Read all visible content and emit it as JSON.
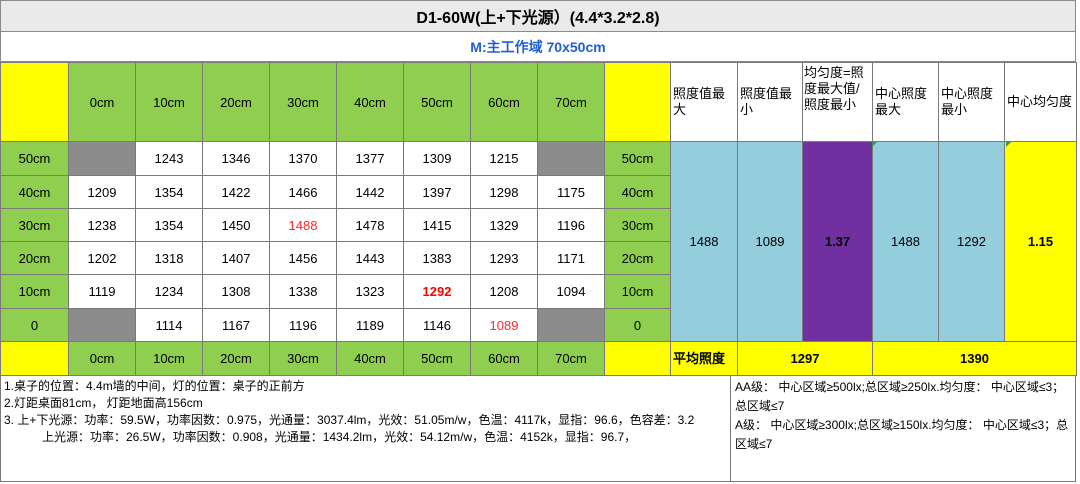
{
  "title": "D1-60W(上+下光源）(4.4*3.2*2.8)",
  "subtitle": "M:主工作域 70x50cm",
  "col_headers": [
    "0cm",
    "10cm",
    "20cm",
    "30cm",
    "40cm",
    "50cm",
    "60cm",
    "70cm"
  ],
  "row_headers": [
    "50cm",
    "40cm",
    "30cm",
    "20cm",
    "10cm",
    "0"
  ],
  "rows": [
    [
      "",
      "1243",
      "1346",
      "1370",
      "1377",
      "1309",
      "1215",
      ""
    ],
    [
      "1209",
      "1354",
      "1422",
      "1466",
      "1442",
      "1397",
      "1298",
      "1175"
    ],
    [
      "1238",
      "1354",
      "1450",
      "1488",
      "1478",
      "1415",
      "1329",
      "1196"
    ],
    [
      "1202",
      "1318",
      "1407",
      "1456",
      "1443",
      "1383",
      "1293",
      "1171"
    ],
    [
      "1119",
      "1234",
      "1308",
      "1338",
      "1323",
      "1292",
      "1208",
      "1094"
    ],
    [
      "",
      "1114",
      "1167",
      "1196",
      "1189",
      "1146",
      "1089",
      ""
    ]
  ],
  "stats_headers": {
    "max": "照度值最大",
    "min": "照度值最小",
    "uniformity": "均匀度=照度最大值/照度最小",
    "center_max": "中心照度最大",
    "center_min": "中心照度最小",
    "center_uniformity": "中心均匀度"
  },
  "stats_values": {
    "max": "1488",
    "min": "1089",
    "uniformity": "1.37",
    "center_max": "1488",
    "center_min": "1292",
    "center_uniformity": "1.15"
  },
  "average": {
    "label": "平均照度",
    "value_all": "1297",
    "value_center": "1390"
  },
  "notes_left": [
    "1.桌子的位置：4.4m墙的中间，灯的位置：桌子的正前方",
    "2.灯距桌面81cm，  灯距地面高156cm",
    "3. 上+下光源：功率：59.5W，功率因数：0.975，光通量：3037.4lm，光效：51.05m/w，色温：4117k，显指：96.6，色容差：3.2",
    "上光源：功率：26.5W，功率因数：0.908，光通量：1434.2lm，光效：54.12m/w，色温：4152k，显指：96.7，"
  ],
  "notes_right": [
    "AA级：  中心区域≥500lx;总区域≥250lx.均匀度：  中心区域≤3；总区域≤7",
    "A级：  中心区域≥300lx;总区域≥150lx.均匀度：  中心区域≤3；总区域≤7"
  ],
  "colors": {
    "header_yellow": "#ffff00",
    "axis_green": "#8fce4e",
    "stats_blue": "#94cddb",
    "uniformity_purple": "#7030a0",
    "highlight_red": "#ff0000"
  }
}
